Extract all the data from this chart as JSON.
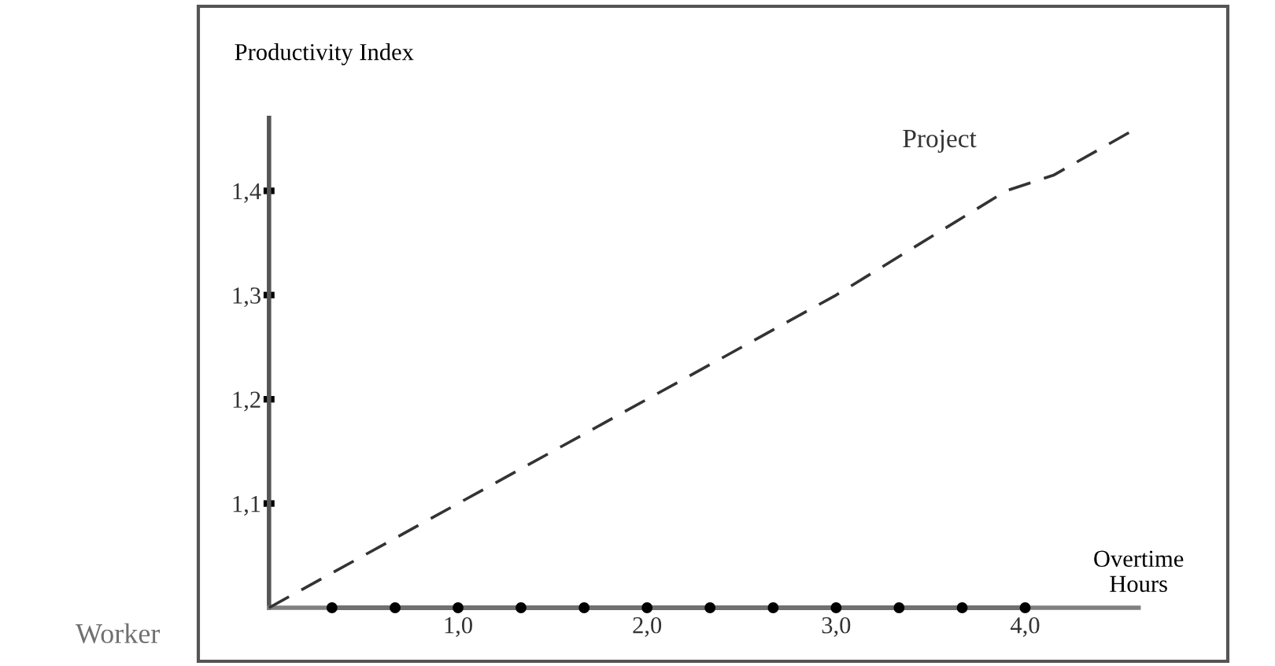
{
  "chart_data": {
    "type": "line",
    "xlabel": "Overtime\nHours",
    "ylabel": "Productivity Index",
    "xlim": [
      0,
      4.6
    ],
    "ylim": [
      1.0,
      1.47
    ],
    "xticks": [
      {
        "value": 1.0,
        "label": "1,0"
      },
      {
        "value": 2.0,
        "label": "2,0"
      },
      {
        "value": 3.0,
        "label": "3,0"
      },
      {
        "value": 4.0,
        "label": "4,0"
      }
    ],
    "yticks": [
      {
        "value": 1.1,
        "label": "1,1"
      },
      {
        "value": 1.2,
        "label": "1,2"
      },
      {
        "value": 1.3,
        "label": "1,3"
      },
      {
        "value": 1.4,
        "label": "1,4"
      }
    ],
    "series": [
      {
        "name": "Project",
        "color": "#333333",
        "line_style": "dashed",
        "x": [
          0,
          1.0,
          2.0,
          3.0,
          3.9,
          4.15,
          4.57
        ],
        "values": [
          1.0,
          1.1,
          1.2,
          1.3,
          1.4,
          1.415,
          1.458
        ]
      },
      {
        "name": "Worker",
        "color": "#707070",
        "line_style": "solid",
        "marker": "circle",
        "x": [
          0.333,
          0.667,
          1.0,
          1.333,
          1.667,
          2.0,
          2.333,
          2.667,
          3.0,
          3.333,
          3.667,
          4.0
        ],
        "values": [
          1.0,
          1.0,
          1.0,
          1.0,
          1.0,
          1.0,
          1.0,
          1.0,
          1.0,
          1.0,
          1.0,
          1.0
        ]
      }
    ],
    "marker": "none",
    "grid": false,
    "legend": false
  }
}
